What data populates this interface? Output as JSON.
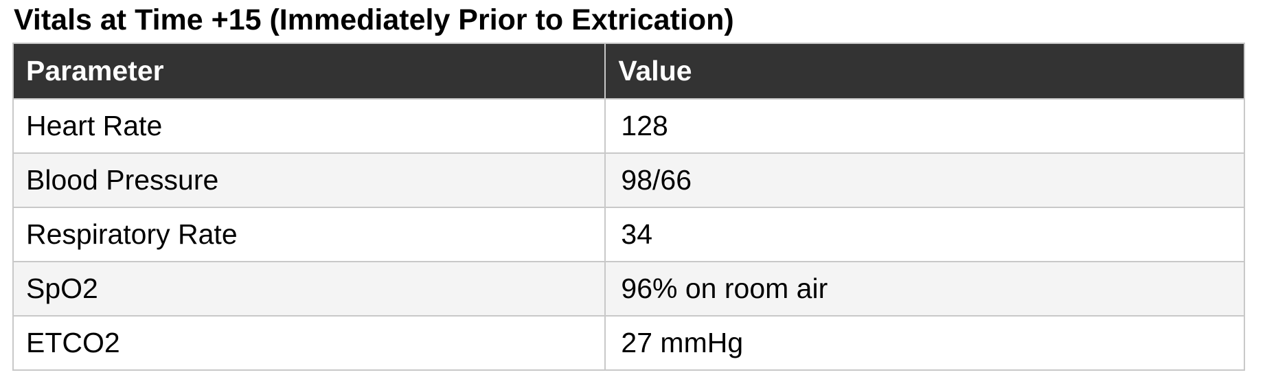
{
  "page": {
    "title": "Vitals at Time +15 (Immediately Prior to Extrication)"
  },
  "table": {
    "columns": [
      "Parameter",
      "Value"
    ],
    "rows": [
      {
        "parameter": "Heart Rate",
        "value": "128"
      },
      {
        "parameter": "Blood Pressure",
        "value": "98/66"
      },
      {
        "parameter": "Respiratory Rate",
        "value": "34"
      },
      {
        "parameter": "SpO2",
        "value": "96% on room air"
      },
      {
        "parameter": "ETCO2",
        "value": "27 mmHg"
      }
    ]
  },
  "colors": {
    "header_bg": "#333333",
    "header_text": "#ffffff",
    "row_bg": "#ffffff",
    "row_alt_bg": "#f4f4f4",
    "border": "#c8c8c8",
    "text": "#000000",
    "title_text": "#000000"
  }
}
